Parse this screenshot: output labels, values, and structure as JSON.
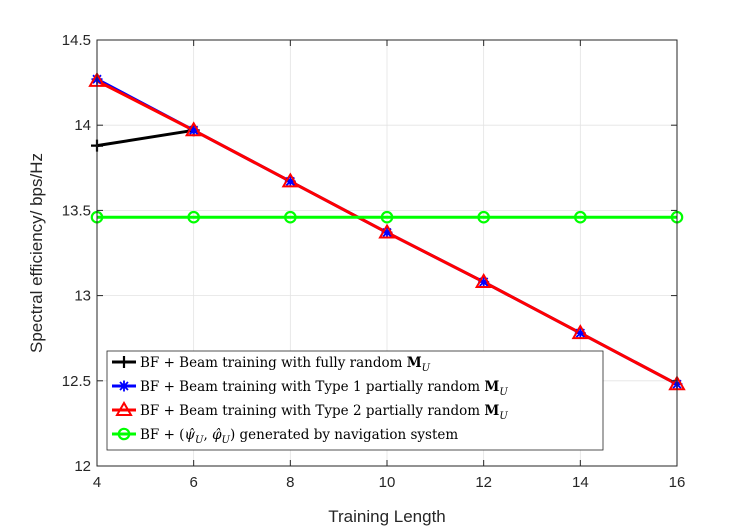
{
  "chart_data": {
    "type": "line",
    "xlabel": "Training Length",
    "ylabel": "Spectral efficiency/ bps/Hz",
    "xlim": [
      4,
      16
    ],
    "ylim": [
      12,
      14.5
    ],
    "grid": true,
    "legend_position": "bottom-left",
    "x_ticks": [
      "4",
      "6",
      "8",
      "10",
      "12",
      "14",
      "16"
    ],
    "y_ticks": [
      "12",
      "12.5",
      "13",
      "13.5",
      "14",
      "14.5"
    ],
    "series": [
      {
        "name": "BF + Beam training with fully random M_U",
        "legend_parts": [
          "BF + Beam training with fully random ",
          "M",
          "U"
        ],
        "color": "#000000",
        "marker": "plus",
        "x": [
          4,
          6
        ],
        "y": [
          13.88,
          13.97
        ]
      },
      {
        "name": "BF + Beam training with Type 1 partially random M_U",
        "legend_parts": [
          "BF + Beam training with Type 1 partially random ",
          "M",
          "U"
        ],
        "color": "#0000ff",
        "marker": "asterisk",
        "x": [
          4,
          6,
          8,
          10,
          12,
          14,
          16
        ],
        "y": [
          14.27,
          13.97,
          13.67,
          13.37,
          13.08,
          12.78,
          12.48
        ]
      },
      {
        "name": "BF + Beam training with Type 2 partially random M_U",
        "legend_parts": [
          "BF + Beam training with Type 2 partially random ",
          "M",
          "U"
        ],
        "color": "#ff0000",
        "marker": "triangle",
        "x": [
          4,
          6,
          8,
          10,
          12,
          14,
          16
        ],
        "y": [
          14.26,
          13.97,
          13.67,
          13.37,
          13.08,
          12.78,
          12.48
        ]
      },
      {
        "name": "BF + (ψ̂_U, φ̂_U) generated by navigation system",
        "legend_parts": [
          "BF + (",
          "ψ̂",
          "U",
          ", ",
          "φ̂",
          "U",
          ") generated by navigation system"
        ],
        "color": "#00ff00",
        "marker": "circle",
        "x": [
          4,
          6,
          8,
          10,
          12,
          14,
          16
        ],
        "y": [
          13.46,
          13.46,
          13.46,
          13.46,
          13.46,
          13.46,
          13.46
        ]
      }
    ]
  }
}
